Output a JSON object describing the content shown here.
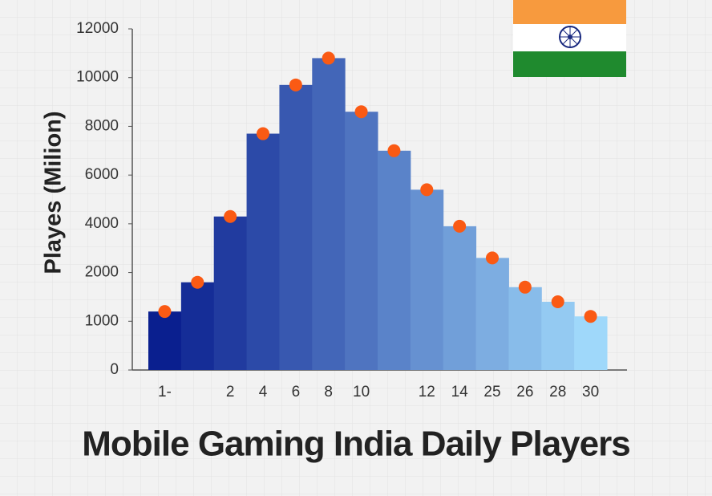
{
  "chart_data": {
    "type": "bar",
    "title": "Mobile Gaming India Daily Players",
    "y_label": "Playes (Milion)",
    "categories": [
      "1-",
      null,
      "2",
      "4",
      "6",
      "8",
      "10",
      null,
      "12",
      "14",
      "25",
      "26",
      "28",
      "30"
    ],
    "values": [
      1200,
      1800,
      4300,
      7700,
      9700,
      10800,
      8600,
      7000,
      5400,
      3900,
      2600,
      1700,
      1400,
      1100
    ],
    "bar_color_start": "#0a1f8f",
    "bar_color_end": "#9fd8fa",
    "marker_color": "#fa5a14",
    "ylim": [
      0,
      12000
    ],
    "yticks": [
      0,
      1000,
      2000,
      4000,
      6000,
      8000,
      10000,
      12000
    ]
  }
}
